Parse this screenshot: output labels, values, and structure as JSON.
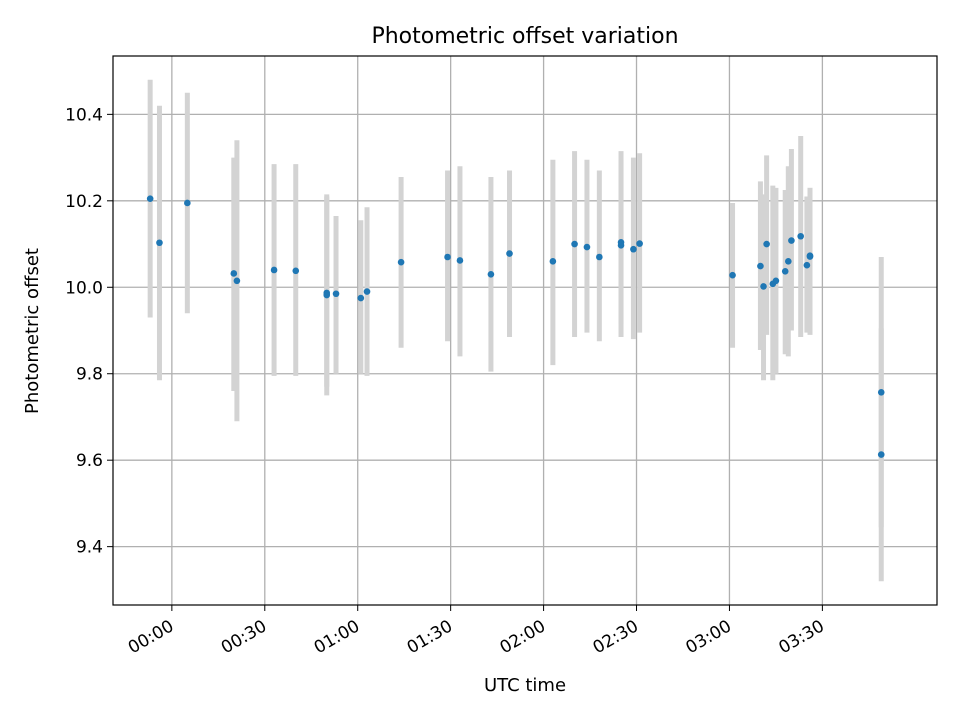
{
  "chart_data": {
    "type": "scatter",
    "title": "Photometric offset variation",
    "xlabel": "UTC time",
    "ylabel": "Photometric offset",
    "xlim": [
      "23:41",
      "04:07"
    ],
    "ylim": [
      9.265,
      10.535
    ],
    "grid": true,
    "x_ticks": [
      "00:00",
      "00:30",
      "01:00",
      "01:30",
      "02:00",
      "02:30",
      "03:00",
      "03:30"
    ],
    "y_ticks": [
      "9.4",
      "9.6",
      "9.8",
      "10.0",
      "10.2",
      "10.4"
    ],
    "colors": {
      "point": "#1f77b4",
      "errorbar": "#d3d3d3",
      "grid": "#b0b0b0"
    },
    "series": [
      {
        "points": [
          {
            "x": "23:53",
            "y": 10.205,
            "ylo": 9.93,
            "yhi": 10.48
          },
          {
            "x": "23:56",
            "y": 10.103,
            "ylo": 9.785,
            "yhi": 10.42
          },
          {
            "x": "00:05",
            "y": 10.195,
            "ylo": 9.94,
            "yhi": 10.45
          },
          {
            "x": "00:20",
            "y": 10.032,
            "ylo": 9.76,
            "yhi": 10.3
          },
          {
            "x": "00:21",
            "y": 10.015,
            "ylo": 9.69,
            "yhi": 10.34
          },
          {
            "x": "00:33",
            "y": 10.04,
            "ylo": 9.795,
            "yhi": 10.285
          },
          {
            "x": "00:40",
            "y": 10.038,
            "ylo": 9.795,
            "yhi": 10.285
          },
          {
            "x": "00:50",
            "y": 9.987,
            "ylo": 9.75,
            "yhi": 10.215
          },
          {
            "x": "00:50",
            "y": 9.982,
            "ylo": 9.77,
            "yhi": 10.21
          },
          {
            "x": "00:53",
            "y": 9.985,
            "ylo": 9.8,
            "yhi": 10.165
          },
          {
            "x": "01:01",
            "y": 9.975,
            "ylo": 9.8,
            "yhi": 10.155
          },
          {
            "x": "01:03",
            "y": 9.99,
            "ylo": 9.795,
            "yhi": 10.185
          },
          {
            "x": "01:14",
            "y": 10.058,
            "ylo": 9.86,
            "yhi": 10.255
          },
          {
            "x": "01:29",
            "y": 10.07,
            "ylo": 9.875,
            "yhi": 10.27
          },
          {
            "x": "01:33",
            "y": 10.062,
            "ylo": 9.84,
            "yhi": 10.28
          },
          {
            "x": "01:43",
            "y": 10.03,
            "ylo": 9.805,
            "yhi": 10.255
          },
          {
            "x": "01:49",
            "y": 10.078,
            "ylo": 9.885,
            "yhi": 10.27
          },
          {
            "x": "02:03",
            "y": 10.06,
            "ylo": 9.82,
            "yhi": 10.295
          },
          {
            "x": "02:10",
            "y": 10.1,
            "ylo": 9.885,
            "yhi": 10.315
          },
          {
            "x": "02:14",
            "y": 10.093,
            "ylo": 9.895,
            "yhi": 10.295
          },
          {
            "x": "02:18",
            "y": 10.07,
            "ylo": 9.875,
            "yhi": 10.27
          },
          {
            "x": "02:25",
            "y": 10.097,
            "ylo": 9.885,
            "yhi": 10.315
          },
          {
            "x": "02:25",
            "y": 10.104,
            "ylo": 9.915,
            "yhi": 10.295
          },
          {
            "x": "02:29",
            "y": 10.088,
            "ylo": 9.88,
            "yhi": 10.3
          },
          {
            "x": "02:31",
            "y": 10.101,
            "ylo": 9.895,
            "yhi": 10.31
          },
          {
            "x": "03:01",
            "y": 10.028,
            "ylo": 9.86,
            "yhi": 10.195
          },
          {
            "x": "03:10",
            "y": 10.049,
            "ylo": 9.855,
            "yhi": 10.245
          },
          {
            "x": "03:11",
            "y": 10.002,
            "ylo": 9.785,
            "yhi": 10.215
          },
          {
            "x": "03:12",
            "y": 10.1,
            "ylo": 9.89,
            "yhi": 10.305
          },
          {
            "x": "03:14",
            "y": 10.008,
            "ylo": 9.785,
            "yhi": 10.235
          },
          {
            "x": "03:15",
            "y": 10.015,
            "ylo": 9.8,
            "yhi": 10.23
          },
          {
            "x": "03:18",
            "y": 10.037,
            "ylo": 9.845,
            "yhi": 10.225
          },
          {
            "x": "03:19",
            "y": 10.06,
            "ylo": 9.84,
            "yhi": 10.28
          },
          {
            "x": "03:20",
            "y": 10.108,
            "ylo": 9.9,
            "yhi": 10.32
          },
          {
            "x": "03:23",
            "y": 10.118,
            "ylo": 9.885,
            "yhi": 10.35
          },
          {
            "x": "03:25",
            "y": 10.051,
            "ylo": 9.895,
            "yhi": 10.21
          },
          {
            "x": "03:26",
            "y": 10.073,
            "ylo": 9.915,
            "yhi": 10.23
          },
          {
            "x": "03:26",
            "y": 10.071,
            "ylo": 9.89,
            "yhi": 10.23
          },
          {
            "x": "03:49",
            "y": 9.757,
            "ylo": 9.445,
            "yhi": 10.07
          },
          {
            "x": "03:49",
            "y": 9.613,
            "ylo": 9.32,
            "yhi": 9.905
          }
        ]
      }
    ]
  }
}
